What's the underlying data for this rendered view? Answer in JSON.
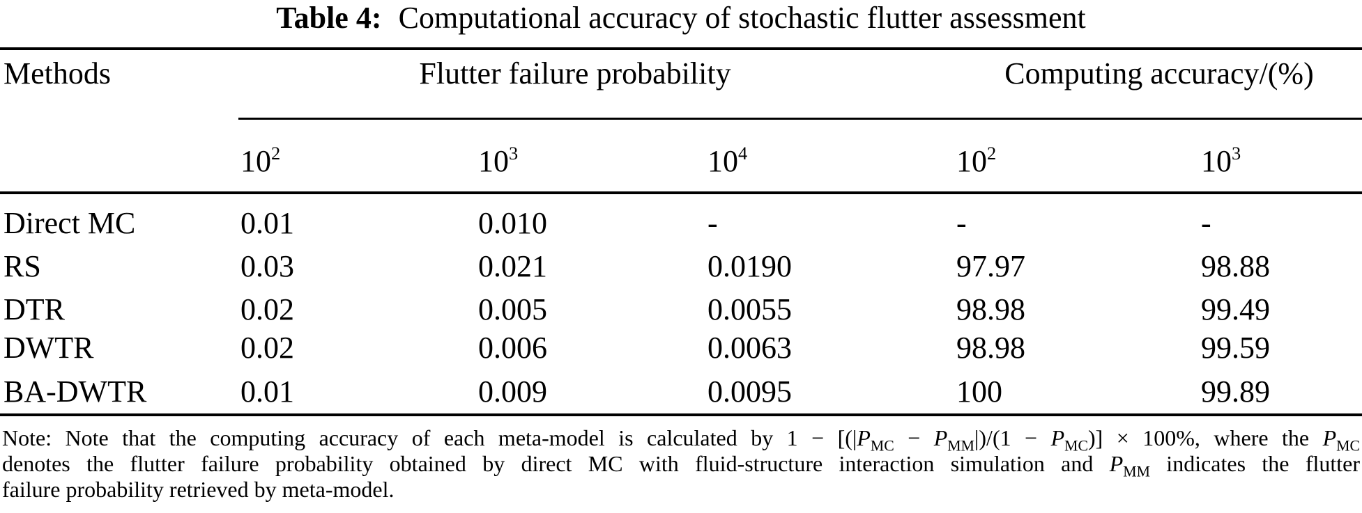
{
  "table": {
    "caption": {
      "label": "Table 4:",
      "text": "Computational accuracy of stochastic flutter assessment"
    },
    "headers": {
      "methods": "Methods",
      "group1": "Flutter failure probability",
      "group2": "Computing accuracy/(%)"
    },
    "subheaders": [
      {
        "base": "10",
        "exp": "2"
      },
      {
        "base": "10",
        "exp": "3"
      },
      {
        "base": "10",
        "exp": "4"
      },
      {
        "base": "10",
        "exp": "2"
      },
      {
        "base": "10",
        "exp": "3"
      }
    ],
    "rows": [
      {
        "method": "Direct MC",
        "values": [
          "0.01",
          "0.010",
          "-",
          "-",
          "-"
        ]
      },
      {
        "method": "RS",
        "values": [
          "0.03",
          "0.021",
          "0.0190",
          "97.97",
          "98.88"
        ]
      },
      {
        "method": "DTR",
        "values": [
          "0.02",
          "0.005",
          "0.0055",
          "98.98",
          "99.49"
        ]
      },
      {
        "method": "DWTR",
        "values": [
          "0.02",
          "0.006",
          "0.0063",
          "98.98",
          "99.59"
        ]
      },
      {
        "method": "BA-DWTR",
        "values": [
          "0.01",
          "0.009",
          "0.0095",
          "100",
          "99.89"
        ]
      }
    ]
  },
  "note": {
    "line1": {
      "s0": "Note: Note that the computing accuracy of each meta-model is calculated by 1 − [(|",
      "v1": "P",
      "b1": "MC",
      "s1": " − ",
      "v2": "P",
      "b2": "MM",
      "s2": "|)/(1 − ",
      "v3": "P",
      "b3": "MC",
      "s3": ")] × 100%, where the ",
      "v4": "P",
      "b4": "MC"
    },
    "line2": {
      "s0": "denotes the flutter failure probability obtained by direct MC with fluid-structure interaction simulation and ",
      "v1": "P",
      "b1": "MM",
      "s1": " indicates the flutter"
    },
    "line3": {
      "s0": "failure probability retrieved by meta-model."
    }
  }
}
